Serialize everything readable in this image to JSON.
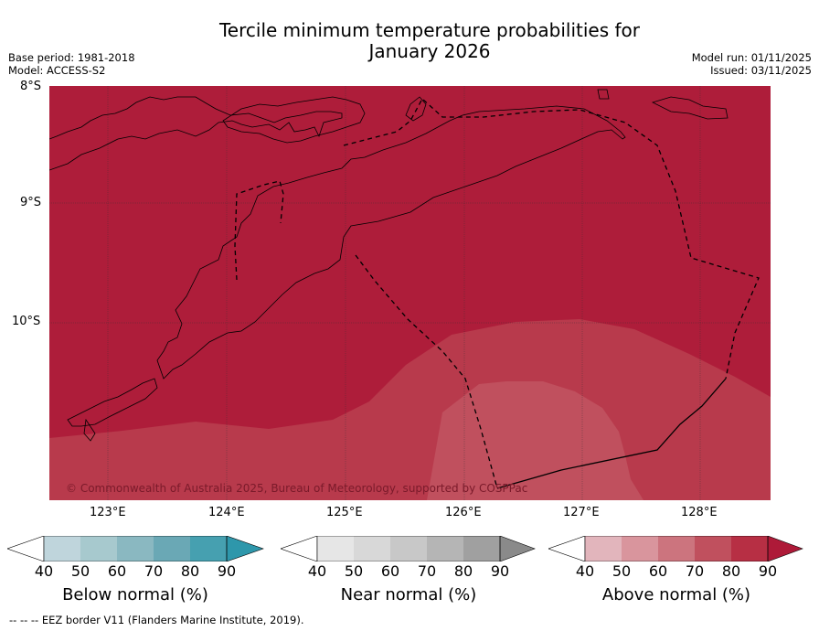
{
  "title_line1": "Tercile minimum temperature probabilities for",
  "title_line2": "January 2026",
  "base_period": "Base period: 1981-2018",
  "model": "Model: ACCESS-S2",
  "model_run": "Model run: 01/11/2025",
  "issued": "Issued: 03/11/2025",
  "lat_labels": [
    "8°S",
    "9°S",
    "10°S"
  ],
  "lon_labels": [
    "123°E",
    "124°E",
    "125°E",
    "126°E",
    "127°E",
    "128°E"
  ],
  "copyright": "© Commonwealth of Australia 2025, Bureau of Meteorology, supported by COSPPac",
  "colorbars": [
    {
      "title": "Below normal (%)",
      "ticks": [
        "40",
        "50",
        "60",
        "70",
        "80",
        "90"
      ],
      "colors": [
        "#ffffff",
        "#bfd5dc",
        "#a7c9ce",
        "#8ab8c1",
        "#6aa8b5",
        "#46a0b0",
        "#2e97ab"
      ]
    },
    {
      "title": "Near normal (%)",
      "ticks": [
        "40",
        "50",
        "60",
        "70",
        "80",
        "90"
      ],
      "colors": [
        "#ffffff",
        "#e6e6e6",
        "#d8d8d8",
        "#c8c8c8",
        "#b5b5b5",
        "#a0a0a0",
        "#8a8a8a"
      ]
    },
    {
      "title": "Above normal (%)",
      "ticks": [
        "40",
        "50",
        "60",
        "70",
        "80",
        "90"
      ],
      "colors": [
        "#ffffff",
        "#e2b5bc",
        "#d9959d",
        "#cc747e",
        "#c0505e",
        "#b72f44",
        "#ae1a38"
      ]
    }
  ],
  "footer": "--  --  -- EEZ border V11 (Flanders Marine Institute, 2019).",
  "colors": {
    "above_90": "#ae1d3a",
    "above_80": "#b83a4c",
    "above_70": "#c0505e"
  }
}
